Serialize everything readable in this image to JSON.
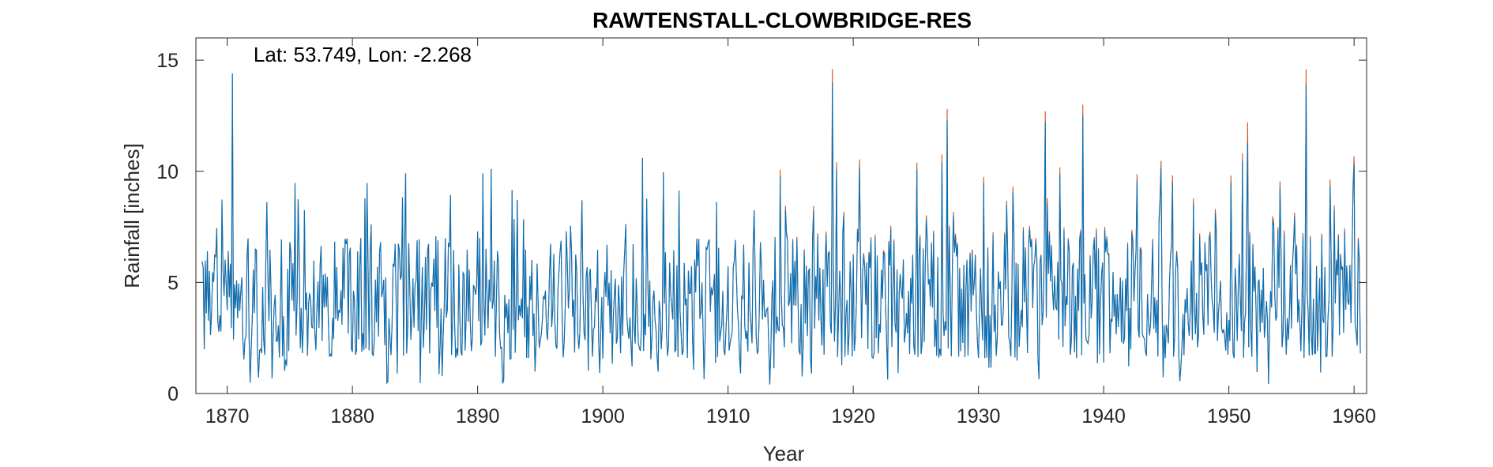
{
  "chart_data": {
    "type": "line",
    "title": "RAWTENSTALL-CLOWBRIDGE-RES",
    "annotation": "Lat: 53.749, Lon: -2.268",
    "xlabel": "Year",
    "ylabel": "Rainfall [inches]",
    "xlim": [
      1867.5,
      1961
    ],
    "ylim": [
      0,
      16
    ],
    "xticks": [
      1870,
      1880,
      1890,
      1900,
      1910,
      1920,
      1930,
      1940,
      1950,
      1960
    ],
    "yticks": [
      0,
      5,
      10,
      15
    ],
    "grid": false,
    "colors": {
      "primary": "#0072BD",
      "secondary": "#D95319",
      "axis": "#262626"
    },
    "series_note": "Monthly rainfall, 1868-1960; the orange trace exceeds the blue one slightly from about 1914 onward.",
    "peaks": [
      {
        "x": 1870.4,
        "y": 14.4
      },
      {
        "x": 1891.1,
        "y": 10.1
      },
      {
        "x": 1903.2,
        "y": 10.6
      },
      {
        "x": 1918.3,
        "y": 14.0,
        "y2": 14.6
      },
      {
        "x": 1927.5,
        "y": 12.3,
        "y2": 12.8
      },
      {
        "x": 1935.3,
        "y": 12.2,
        "y2": 12.7
      },
      {
        "x": 1938.3,
        "y": 12.5,
        "y2": 13.0
      },
      {
        "x": 1951.5,
        "y": 11.3,
        "y2": 12.2
      },
      {
        "x": 1956.2,
        "y": 13.9,
        "y2": 14.6
      }
    ],
    "series": [
      {
        "values_summary": "Monthly values between about 0.2 and 14.6 inches, typically 1.5-8 inches"
      }
    ]
  }
}
